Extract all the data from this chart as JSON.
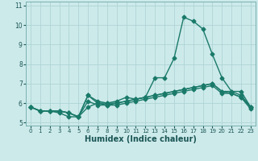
{
  "title": "",
  "xlabel": "Humidex (Indice chaleur)",
  "x": [
    0,
    1,
    2,
    3,
    4,
    5,
    6,
    7,
    8,
    9,
    10,
    11,
    12,
    13,
    14,
    15,
    16,
    17,
    18,
    19,
    20,
    21,
    22,
    23
  ],
  "line1": [
    5.8,
    5.6,
    5.6,
    5.6,
    5.5,
    5.3,
    6.4,
    6.1,
    6.0,
    6.0,
    6.1,
    6.2,
    6.3,
    6.4,
    6.5,
    6.6,
    6.7,
    6.8,
    6.9,
    7.0,
    6.6,
    6.6,
    6.4,
    5.8
  ],
  "line2": [
    5.8,
    5.6,
    5.6,
    5.5,
    5.3,
    5.3,
    5.8,
    6.0,
    6.0,
    6.1,
    6.3,
    6.2,
    6.3,
    7.3,
    7.3,
    8.3,
    10.4,
    10.2,
    9.8,
    8.5,
    7.3,
    6.6,
    6.6,
    5.8
  ],
  "line3": [
    5.8,
    5.6,
    5.6,
    5.6,
    5.5,
    5.3,
    6.4,
    6.0,
    5.9,
    5.9,
    6.0,
    6.1,
    6.2,
    6.3,
    6.4,
    6.5,
    6.6,
    6.7,
    6.8,
    6.9,
    6.5,
    6.5,
    6.3,
    5.7
  ],
  "line4": [
    5.8,
    5.6,
    5.6,
    5.6,
    5.5,
    5.3,
    6.1,
    5.9,
    5.9,
    6.0,
    6.1,
    6.2,
    6.3,
    6.4,
    6.5,
    6.6,
    6.7,
    6.8,
    6.9,
    7.0,
    6.6,
    6.5,
    6.3,
    5.8
  ],
  "line_color": "#1a7a6a",
  "bg_color": "#cdeaea",
  "grid_color": "#afd4d4",
  "ylim": [
    4.85,
    11.2
  ],
  "yticks": [
    5,
    6,
    7,
    8,
    9,
    10,
    11
  ],
  "xticks": [
    0,
    1,
    2,
    3,
    4,
    5,
    6,
    7,
    8,
    9,
    10,
    11,
    12,
    13,
    14,
    15,
    16,
    17,
    18,
    19,
    20,
    21,
    22,
    23
  ],
  "marker": "D",
  "markersize": 2.5,
  "linewidth": 1.0
}
